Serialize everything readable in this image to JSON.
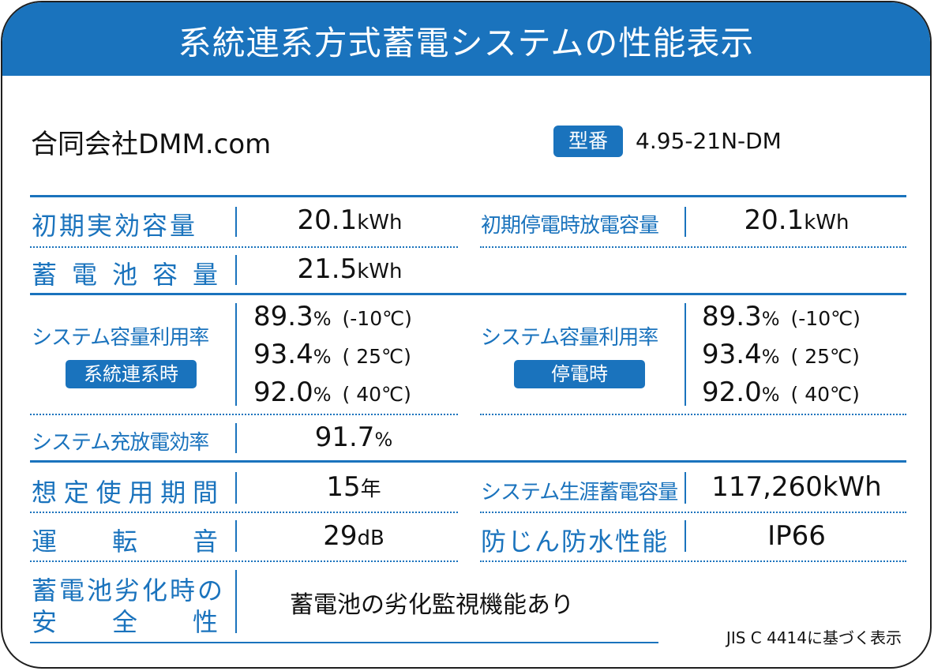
{
  "header": {
    "title": "系統連系方式蓄電システムの性能表示"
  },
  "company": "合同会社DMM.com",
  "model": {
    "label": "型番",
    "value": "4.95-21N-DM"
  },
  "rows": {
    "initial_capacity": {
      "label": "初期実効容量",
      "value": "20.1",
      "unit": "kWh"
    },
    "outage_capacity": {
      "label": "初期停電時放電容量",
      "value": "20.1",
      "unit": "kWh"
    },
    "battery_capacity": {
      "label_chars": [
        "蓄",
        "電",
        "池",
        "容",
        "量"
      ],
      "value": "21.5",
      "unit": "kWh"
    },
    "util_grid": {
      "label": "システム容量利用率",
      "tag": "系統連系時",
      "lines": [
        {
          "value": "89.3",
          "unit": "%",
          "temp": "(-10℃)"
        },
        {
          "value": "93.4",
          "unit": "%",
          "temp": "( 25℃)"
        },
        {
          "value": "92.0",
          "unit": "%",
          "temp": "( 40℃)"
        }
      ]
    },
    "util_outage": {
      "label": "システム容量利用率",
      "tag": "停電時",
      "lines": [
        {
          "value": "89.3",
          "unit": "%",
          "temp": "(-10℃)"
        },
        {
          "value": "93.4",
          "unit": "%",
          "temp": "( 25℃)"
        },
        {
          "value": "92.0",
          "unit": "%",
          "temp": "( 40℃)"
        }
      ]
    },
    "efficiency": {
      "label": "システム充放電効率",
      "value": "91.7",
      "unit": "%"
    },
    "lifetime": {
      "label_chars": [
        "想",
        "定",
        "使",
        "用",
        "期",
        "間"
      ],
      "value": "15",
      "unit": "年"
    },
    "lifetime_capacity": {
      "label": "システム生涯蓄電容量",
      "value": "117,260kWh"
    },
    "noise": {
      "label_chars": [
        "運",
        "転",
        "音"
      ],
      "value": "29",
      "unit": "dB"
    },
    "ip": {
      "label": "防じん防水性能",
      "value": "IP66"
    },
    "safety": {
      "label_line1": "蓄電池劣化時の",
      "label_line2_chars": [
        "安",
        "全",
        "性"
      ],
      "value": "蓄電池の劣化監視機能あり"
    }
  },
  "footer_note": "JIS C 4414に基づく表示"
}
